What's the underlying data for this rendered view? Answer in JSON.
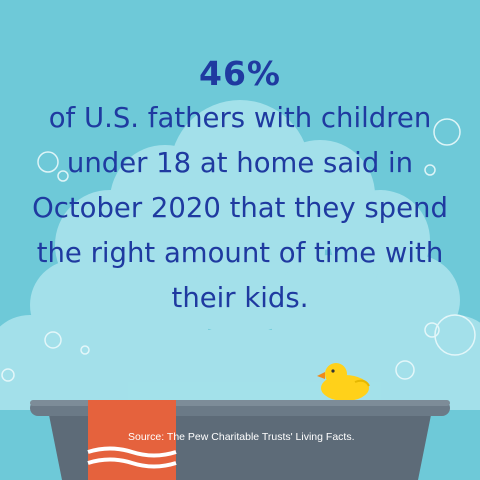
{
  "stat": {
    "value": "46%",
    "text": "of U.S. fathers with children under 18 at home said in October 2020 that they spend the right amount of time with their kids."
  },
  "source": "Source: The Pew Charitable Trusts' Living Facts.",
  "colors": {
    "background": "#6ec9d8",
    "text": "#1f3aa0",
    "foam": "#a9e3ec",
    "tub": "#5d6b78",
    "towel": "#e5623d",
    "duck": "#ffd11a"
  },
  "icons": [
    "bubble-icon",
    "rubber-duck-icon",
    "bathtub-icon",
    "towel-icon"
  ]
}
